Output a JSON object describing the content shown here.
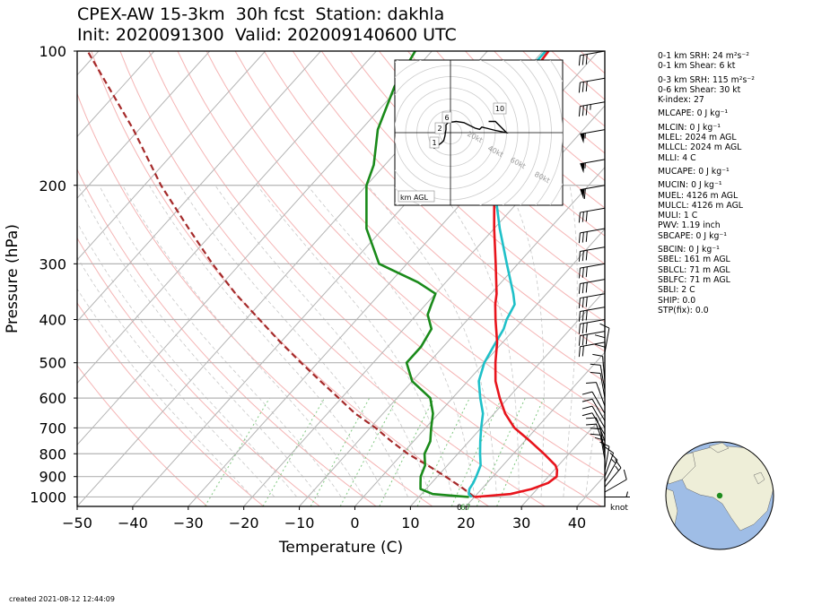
{
  "title_line1": "CPEX-AW 15-3km  30h fcst  Station: dakhla",
  "title_line2": "Init: 2020091300  Valid: 202009140600 UTC",
  "created": "created 2021-08-12 12:44:09",
  "indices": [
    {
      "text": "0-1 km SRH: 24 m²s⁻²"
    },
    {
      "text": "0-1 km Shear: 6 kt"
    },
    {
      "gap": true
    },
    {
      "text": "0-3 km SRH: 115 m²s⁻²"
    },
    {
      "text": "0-6 km Shear: 30 kt"
    },
    {
      "text": "K-index: 27"
    },
    {
      "gap": true
    },
    {
      "text": "MLCAPE: 0 J kg⁻¹"
    },
    {
      "gap": true
    },
    {
      "text": "MLCIN: 0 J kg⁻¹"
    },
    {
      "text": "MLEL: 2024 m AGL"
    },
    {
      "text": "MLLCL: 2024 m AGL"
    },
    {
      "text": "MLLI: 4 C"
    },
    {
      "gap": true
    },
    {
      "text": "MUCAPE: 0 J kg⁻¹"
    },
    {
      "gap": true
    },
    {
      "text": "MUCIN: 0 J kg⁻¹"
    },
    {
      "text": "MUEL: 4126 m AGL"
    },
    {
      "text": "MULCL: 4126 m AGL"
    },
    {
      "text": "MULI: 1 C"
    },
    {
      "text": "PWV: 1.19 inch"
    },
    {
      "text": "SBCAPE: 0 J kg⁻¹"
    },
    {
      "gap": true
    },
    {
      "text": "SBCIN: 0 J kg⁻¹"
    },
    {
      "text": "SBEL: 161 m AGL"
    },
    {
      "text": "SBLCL: 71 m AGL"
    },
    {
      "text": "SBLFC: 71 m AGL"
    },
    {
      "text": "SBLI: 2 C"
    },
    {
      "text": "SHIP: 0.0"
    },
    {
      "text": "STP(fix): 0.0"
    }
  ],
  "colors": {
    "temperature": "#e8141c",
    "dewpoint": "#1a8a1a",
    "wetbulb": "#1ec0c8",
    "parcel": "#a52a2a",
    "isobar": "#b4b4b4",
    "isotherm": "#b4b4b4",
    "dry_adiabat": "#f5b4b4",
    "moist_adiabat": "#c8c8c8",
    "mixing_ratio": "#80c880",
    "globe_ocean": "#9fbde6",
    "globe_land": "#eeeed8",
    "station_marker": "#1e8c1e"
  },
  "chart_data": {
    "type": "skew-t",
    "xlabel": "Temperature (C)",
    "ylabel": "Pressure (hPa)",
    "xlim": [
      -50,
      45
    ],
    "ylim": [
      1050,
      100
    ],
    "y_scale": "log",
    "x_ticks": [
      "−50",
      "−40",
      "−30",
      "−20",
      "−10",
      "0",
      "10",
      "20",
      "30",
      "40"
    ],
    "y_ticks": [
      "100",
      "200",
      "300",
      "400",
      "500",
      "600",
      "700",
      "800",
      "900",
      "1000"
    ],
    "isotherm_step": 10,
    "series": [
      {
        "role": "temperature",
        "points": [
          [
            1000,
            20
          ],
          [
            985,
            26
          ],
          [
            960,
            29
          ],
          [
            930,
            31
          ],
          [
            900,
            31.5
          ],
          [
            870,
            30.5
          ],
          [
            850,
            29.5
          ],
          [
            800,
            25.5
          ],
          [
            750,
            21
          ],
          [
            700,
            16
          ],
          [
            650,
            12
          ],
          [
            600,
            8.5
          ],
          [
            550,
            5
          ],
          [
            500,
            2
          ],
          [
            450,
            -1
          ],
          [
            400,
            -5
          ],
          [
            370,
            -7.5
          ],
          [
            350,
            -9
          ],
          [
            300,
            -14
          ],
          [
            250,
            -20
          ],
          [
            200,
            -27
          ],
          [
            170,
            -32
          ],
          [
            150,
            -36
          ],
          [
            130,
            -37
          ],
          [
            110,
            -38.5
          ],
          [
            100,
            -39
          ]
        ]
      },
      {
        "role": "wetbulb",
        "points": [
          [
            1000,
            19.5
          ],
          [
            985,
            18.5
          ],
          [
            960,
            17.8
          ],
          [
            930,
            17.5
          ],
          [
            900,
            17
          ],
          [
            850,
            16
          ],
          [
            800,
            14
          ],
          [
            750,
            12
          ],
          [
            700,
            10
          ],
          [
            650,
            8
          ],
          [
            600,
            5
          ],
          [
            550,
            2
          ],
          [
            500,
            0
          ],
          [
            460,
            -1
          ],
          [
            420,
            -2
          ],
          [
            400,
            -3
          ],
          [
            370,
            -4
          ],
          [
            350,
            -6
          ],
          [
            300,
            -12
          ],
          [
            250,
            -19
          ],
          [
            200,
            -27
          ],
          [
            170,
            -33
          ],
          [
            150,
            -37
          ],
          [
            130,
            -39
          ],
          [
            110,
            -39.5
          ],
          [
            100,
            -39.5
          ]
        ]
      },
      {
        "role": "dewpoint",
        "points": [
          [
            1000,
            19
          ],
          [
            985,
            12
          ],
          [
            960,
            9
          ],
          [
            930,
            8
          ],
          [
            900,
            7
          ],
          [
            850,
            6
          ],
          [
            800,
            4
          ],
          [
            750,
            3
          ],
          [
            700,
            1
          ],
          [
            650,
            -1
          ],
          [
            600,
            -4
          ],
          [
            550,
            -10
          ],
          [
            500,
            -14
          ],
          [
            460,
            -14
          ],
          [
            420,
            -15
          ],
          [
            390,
            -18
          ],
          [
            370,
            -19
          ],
          [
            350,
            -20
          ],
          [
            330,
            -25
          ],
          [
            300,
            -35
          ],
          [
            250,
            -43
          ],
          [
            200,
            -50
          ],
          [
            180,
            -52
          ],
          [
            150,
            -57
          ],
          [
            120,
            -61
          ],
          [
            100,
            -63
          ]
        ]
      },
      {
        "role": "parcel",
        "points": [
          [
            1000,
            20
          ],
          [
            950,
            16
          ],
          [
            900,
            11.5
          ],
          [
            850,
            6.5
          ],
          [
            800,
            1
          ],
          [
            750,
            -4
          ],
          [
            700,
            -9
          ],
          [
            650,
            -15
          ],
          [
            600,
            -20.5
          ],
          [
            550,
            -26.5
          ],
          [
            500,
            -33
          ],
          [
            450,
            -40
          ],
          [
            400,
            -47.5
          ],
          [
            350,
            -56
          ],
          [
            300,
            -65
          ],
          [
            250,
            -75
          ],
          [
            200,
            -87
          ],
          [
            150,
            -101
          ],
          [
            100,
            -122
          ]
        ]
      }
    ],
    "hodograph": {
      "units": "kt",
      "ring_labels": [
        "20kt",
        "40kt",
        "60kt",
        "80kt"
      ],
      "height_labels": [
        "1",
        "2",
        "6",
        "10"
      ],
      "footer": "km AGL",
      "points": [
        [
          -15,
          -14
        ],
        [
          -12,
          -12
        ],
        [
          -8,
          -9
        ],
        [
          -6,
          -7
        ],
        [
          -5,
          -3
        ],
        [
          -4,
          3
        ],
        [
          -4,
          7
        ],
        [
          -2,
          9
        ],
        [
          5,
          10
        ],
        [
          12,
          9
        ],
        [
          18,
          6
        ],
        [
          22,
          4
        ],
        [
          26,
          3
        ],
        [
          28,
          5
        ],
        [
          32,
          4
        ],
        [
          40,
          2
        ],
        [
          45,
          1
        ],
        [
          50,
          0
        ],
        [
          40,
          10
        ],
        [
          34,
          10
        ]
      ]
    },
    "wind_barbs": [
      {
        "p": 1000,
        "spd": 5,
        "dir": 90
      },
      {
        "p": 975,
        "spd": 10,
        "dir": 60
      },
      {
        "p": 950,
        "spd": 15,
        "dir": 40
      },
      {
        "p": 925,
        "spd": 15,
        "dir": 30
      },
      {
        "p": 900,
        "spd": 10,
        "dir": 20
      },
      {
        "p": 875,
        "spd": 10,
        "dir": 10
      },
      {
        "p": 850,
        "spd": 10,
        "dir": 0
      },
      {
        "p": 825,
        "spd": 10,
        "dir": 350
      },
      {
        "p": 800,
        "spd": 10,
        "dir": 350
      },
      {
        "p": 775,
        "spd": 10,
        "dir": 340
      },
      {
        "p": 750,
        "spd": 10,
        "dir": 340
      },
      {
        "p": 725,
        "spd": 10,
        "dir": 330
      },
      {
        "p": 700,
        "spd": 10,
        "dir": 330
      },
      {
        "p": 675,
        "spd": 10,
        "dir": 330
      },
      {
        "p": 650,
        "spd": 10,
        "dir": 330
      },
      {
        "p": 625,
        "spd": 10,
        "dir": 340
      },
      {
        "p": 600,
        "spd": 10,
        "dir": 350
      },
      {
        "p": 575,
        "spd": 10,
        "dir": 350
      },
      {
        "p": 550,
        "spd": 10,
        "dir": 355
      },
      {
        "p": 525,
        "spd": 10,
        "dir": 0
      },
      {
        "p": 500,
        "spd": 10,
        "dir": 0
      },
      {
        "p": 475,
        "spd": 10,
        "dir": 10
      },
      {
        "p": 450,
        "spd": 20,
        "dir": 260
      },
      {
        "p": 425,
        "spd": 30,
        "dir": 260
      },
      {
        "p": 400,
        "spd": 30,
        "dir": 260
      },
      {
        "p": 375,
        "spd": 30,
        "dir": 260
      },
      {
        "p": 350,
        "spd": 30,
        "dir": 260
      },
      {
        "p": 325,
        "spd": 30,
        "dir": 260
      },
      {
        "p": 300,
        "spd": 30,
        "dir": 260
      },
      {
        "p": 275,
        "spd": 30,
        "dir": 260
      },
      {
        "p": 250,
        "spd": 30,
        "dir": 260
      },
      {
        "p": 225,
        "spd": 30,
        "dir": 260
      },
      {
        "p": 200,
        "spd": 60,
        "dir": 260
      },
      {
        "p": 175,
        "spd": 55,
        "dir": 260
      },
      {
        "p": 150,
        "spd": 55,
        "dir": 260
      },
      {
        "p": 130,
        "spd": 35,
        "dir": 260
      },
      {
        "p": 115,
        "spd": 30,
        "dir": 260
      },
      {
        "p": 100,
        "spd": 30,
        "dir": 260
      }
    ],
    "wind_units": "knot",
    "annotations": [
      "0",
      "67"
    ]
  },
  "globe": {
    "marker_lon": -16,
    "marker_lat": 24
  }
}
